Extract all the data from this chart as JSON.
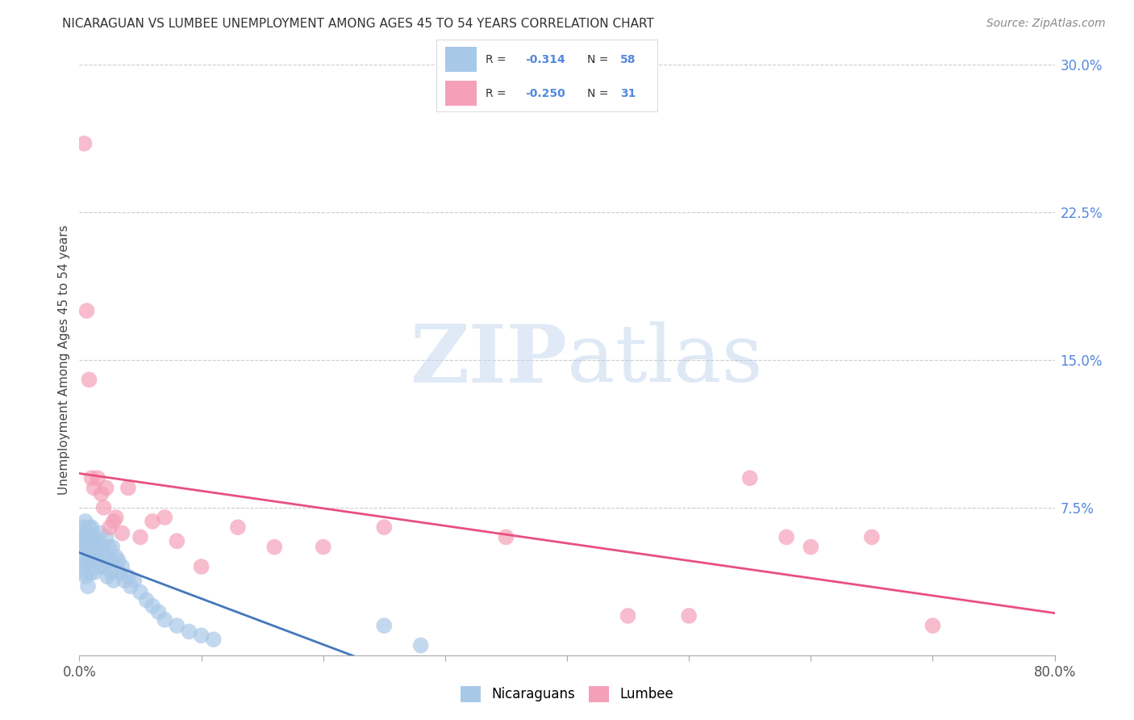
{
  "title": "NICARAGUAN VS LUMBEE UNEMPLOYMENT AMONG AGES 45 TO 54 YEARS CORRELATION CHART",
  "source": "Source: ZipAtlas.com",
  "ylabel": "Unemployment Among Ages 45 to 54 years",
  "xlim": [
    0.0,
    0.8
  ],
  "ylim": [
    0.0,
    0.3
  ],
  "yticks_right": [
    0.0,
    0.075,
    0.15,
    0.225,
    0.3
  ],
  "ytick_labels_right": [
    "",
    "7.5%",
    "15.0%",
    "22.5%",
    "30.0%"
  ],
  "legend_r_nicaraguan": "-0.314",
  "legend_n_nicaraguan": "58",
  "legend_r_lumbee": "-0.250",
  "legend_n_lumbee": "31",
  "nicaraguan_color": "#a8c8e8",
  "lumbee_color": "#f4a0b8",
  "trend_nicaraguan_color": "#4477bb",
  "trend_lumbee_color": "#e85080",
  "watermark_zip": "ZIP",
  "watermark_atlas": "atlas",
  "background_color": "#ffffff",
  "nicaraguan_x": [
    0.001,
    0.002,
    0.002,
    0.003,
    0.003,
    0.004,
    0.004,
    0.005,
    0.005,
    0.005,
    0.006,
    0.006,
    0.007,
    0.007,
    0.008,
    0.008,
    0.009,
    0.009,
    0.01,
    0.01,
    0.011,
    0.012,
    0.012,
    0.013,
    0.014,
    0.015,
    0.016,
    0.017,
    0.018,
    0.019,
    0.02,
    0.021,
    0.022,
    0.023,
    0.024,
    0.025,
    0.026,
    0.027,
    0.028,
    0.03,
    0.032,
    0.033,
    0.035,
    0.037,
    0.04,
    0.042,
    0.045,
    0.05,
    0.055,
    0.06,
    0.065,
    0.07,
    0.08,
    0.09,
    0.1,
    0.11,
    0.25,
    0.28
  ],
  "nicaraguan_y": [
    0.06,
    0.055,
    0.05,
    0.065,
    0.045,
    0.058,
    0.042,
    0.068,
    0.055,
    0.04,
    0.062,
    0.048,
    0.06,
    0.035,
    0.065,
    0.05,
    0.058,
    0.042,
    0.065,
    0.048,
    0.055,
    0.06,
    0.042,
    0.058,
    0.05,
    0.055,
    0.048,
    0.062,
    0.045,
    0.055,
    0.05,
    0.045,
    0.06,
    0.04,
    0.055,
    0.048,
    0.042,
    0.055,
    0.038,
    0.05,
    0.048,
    0.042,
    0.045,
    0.038,
    0.04,
    0.035,
    0.038,
    0.032,
    0.028,
    0.025,
    0.022,
    0.018,
    0.015,
    0.012,
    0.01,
    0.008,
    0.015,
    0.005
  ],
  "lumbee_x": [
    0.004,
    0.006,
    0.008,
    0.01,
    0.012,
    0.015,
    0.018,
    0.02,
    0.022,
    0.025,
    0.028,
    0.03,
    0.035,
    0.04,
    0.05,
    0.06,
    0.07,
    0.08,
    0.1,
    0.13,
    0.16,
    0.2,
    0.25,
    0.35,
    0.45,
    0.5,
    0.55,
    0.58,
    0.6,
    0.65,
    0.7
  ],
  "lumbee_y": [
    0.26,
    0.175,
    0.14,
    0.09,
    0.085,
    0.09,
    0.082,
    0.075,
    0.085,
    0.065,
    0.068,
    0.07,
    0.062,
    0.085,
    0.06,
    0.068,
    0.07,
    0.058,
    0.045,
    0.065,
    0.055,
    0.055,
    0.065,
    0.06,
    0.02,
    0.02,
    0.09,
    0.06,
    0.055,
    0.06,
    0.015
  ]
}
